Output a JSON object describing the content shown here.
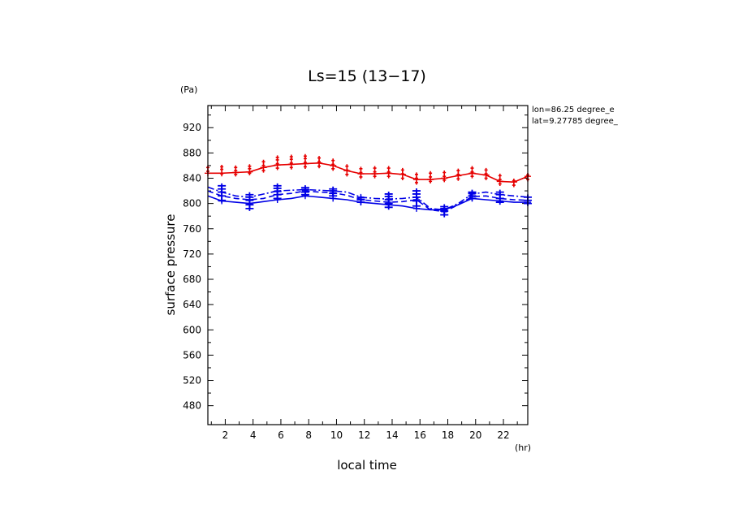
{
  "chart_data": {
    "type": "line",
    "title": "Ls=15 (13−17)",
    "xlabel": "local time",
    "ylabel": "surface pressure",
    "x_unit": "(hr)",
    "y_unit": "(Pa)",
    "xlim": [
      0.75,
      23.75
    ],
    "ylim": [
      450,
      955
    ],
    "x_ticks": [
      2,
      4,
      6,
      8,
      10,
      12,
      14,
      16,
      18,
      20,
      22
    ],
    "y_ticks": [
      480,
      520,
      560,
      600,
      640,
      680,
      720,
      760,
      800,
      840,
      880,
      920
    ],
    "annotations": [
      "lon=86.25 degree_e",
      "lat=9.27785 degree_"
    ],
    "colors": {
      "red": "#e60000",
      "blue": "#0000e6"
    },
    "x": [
      0.75,
      1.75,
      2.75,
      3.75,
      4.75,
      5.75,
      6.75,
      7.75,
      8.75,
      9.75,
      10.75,
      11.75,
      12.75,
      13.75,
      14.75,
      15.75,
      16.75,
      17.75,
      18.75,
      19.75,
      20.75,
      21.75,
      22.75,
      23.75
    ],
    "series": [
      {
        "color": "red",
        "dash": "solid",
        "values": [
          848,
          848,
          849,
          850,
          857,
          861,
          862,
          863,
          864,
          860,
          852,
          847,
          847,
          848,
          846,
          838,
          838,
          840,
          844,
          848,
          845,
          835,
          834,
          843
        ],
        "samples": [
          [
            0.75,
            [
              851,
              857
            ]
          ],
          [
            1.75,
            [
              847,
              854,
              858
            ]
          ],
          [
            2.75,
            [
              846,
              852,
              857
            ]
          ],
          [
            3.75,
            [
              848,
              855,
              859
            ]
          ],
          [
            4.75,
            [
              852,
              860,
              866
            ]
          ],
          [
            5.75,
            [
              856,
              863,
              869,
              873
            ]
          ],
          [
            6.75,
            [
              857,
              864,
              870,
              874
            ]
          ],
          [
            7.75,
            [
              858,
              865,
              871,
              875
            ]
          ],
          [
            8.75,
            [
              859,
              866,
              872
            ]
          ],
          [
            9.75,
            [
              855,
              862,
              868
            ]
          ],
          [
            10.75,
            [
              846,
              853,
              859
            ]
          ],
          [
            11.75,
            [
              842,
              849,
              855
            ]
          ],
          [
            12.75,
            [
              843,
              850,
              856
            ]
          ],
          [
            13.75,
            [
              843,
              850,
              856
            ]
          ],
          [
            14.75,
            [
              840,
              847,
              853
            ]
          ],
          [
            15.75,
            [
              833,
              840,
              846
            ]
          ],
          [
            16.75,
            [
              835,
              842,
              848
            ]
          ],
          [
            17.75,
            [
              837,
              843,
              849
            ]
          ],
          [
            18.75,
            [
              839,
              846,
              852
            ]
          ],
          [
            19.75,
            [
              843,
              850,
              856
            ]
          ],
          [
            20.75,
            [
              840,
              847,
              853
            ]
          ],
          [
            21.75,
            [
              831,
              838,
              844
            ]
          ],
          [
            22.75,
            [
              829,
              836
            ]
          ],
          [
            23.75,
            [
              838,
              845
            ]
          ]
        ]
      },
      {
        "color": "blue",
        "dash": "dashdot",
        "values": [
          826,
          818,
          812,
          810,
          815,
          820,
          821,
          822,
          821,
          820,
          818,
          810,
          808,
          807,
          808,
          810,
          792,
          790,
          800,
          815,
          818,
          814,
          812,
          810
        ]
      },
      {
        "color": "blue",
        "dash": "dashed",
        "values": [
          820,
          812,
          808,
          806,
          808,
          814,
          816,
          820,
          818,
          817,
          813,
          806,
          804,
          802,
          803,
          806,
          790,
          787,
          798,
          811,
          812,
          808,
          806,
          805
        ]
      },
      {
        "color": "blue",
        "dash": "solid",
        "values": [
          812,
          804,
          802,
          800,
          803,
          806,
          808,
          812,
          810,
          808,
          806,
          802,
          800,
          798,
          796,
          792,
          790,
          790,
          798,
          808,
          806,
          804,
          802,
          802
        ]
      }
    ],
    "blue_samples": [
      [
        1.75,
        [
          805,
          812,
          818,
          823,
          828
        ]
      ],
      [
        3.75,
        [
          792,
          798,
          805,
          810,
          814
        ]
      ],
      [
        5.75,
        [
          808,
          814,
          819,
          824,
          828
        ]
      ],
      [
        7.75,
        [
          814,
          818,
          822,
          825
        ]
      ],
      [
        9.75,
        [
          812,
          816,
          820,
          823
        ]
      ],
      [
        11.75,
        [
          802,
          806,
          809
        ]
      ],
      [
        13.75,
        [
          794,
          800,
          806,
          811,
          815
        ]
      ],
      [
        15.75,
        [
          796,
          804,
          810,
          815,
          820
        ]
      ],
      [
        17.75,
        [
          782,
          788,
          792,
          795
        ]
      ],
      [
        19.75,
        [
          808,
          812,
          816,
          818
        ]
      ],
      [
        21.75,
        [
          802,
          808,
          814,
          818
        ]
      ],
      [
        23.75,
        [
          800,
          805,
          810
        ]
      ]
    ]
  }
}
